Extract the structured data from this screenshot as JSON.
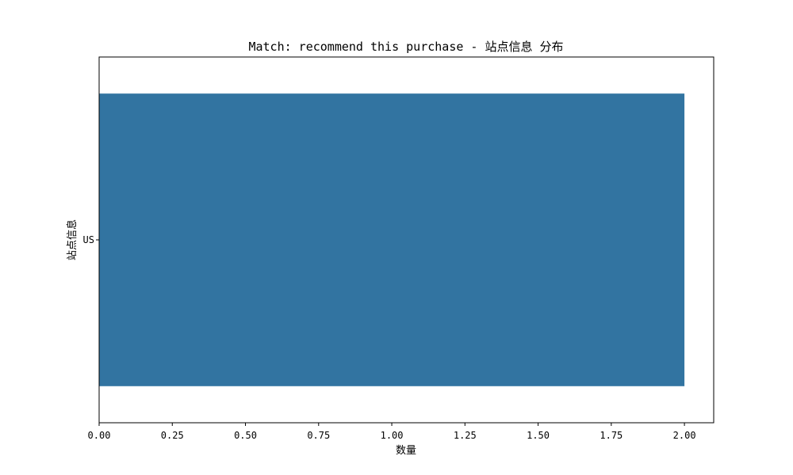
{
  "chart_data": {
    "type": "bar",
    "orientation": "horizontal",
    "title": "Match: recommend this purchase - 站点信息 分布",
    "xlabel": "数量",
    "ylabel": "站点信息",
    "categories": [
      "US"
    ],
    "values": [
      2
    ],
    "xlim": [
      0,
      2.1
    ],
    "xticks": [
      "0.00",
      "0.25",
      "0.50",
      "0.75",
      "1.00",
      "1.25",
      "1.50",
      "1.75",
      "2.00"
    ],
    "grid": false,
    "bar_color": "#3274a1"
  }
}
